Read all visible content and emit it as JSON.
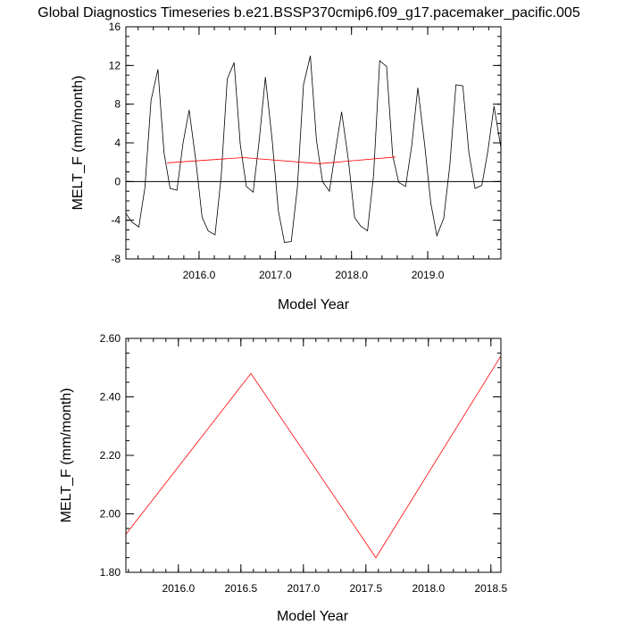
{
  "figure": {
    "title": "Global Diagnostics Timeseries b.e21.BSSP370cmip6.f09_g17.pacemaker_pacific.005"
  },
  "colors": {
    "monthly_series": "#000000",
    "annual_series": "#ff0000",
    "zero_line": "#000000"
  },
  "chart_data": [
    {
      "type": "line",
      "title": "Global Diagnostics Timeseries b.e21.BSSP370cmip6.f09_g17.pacemaker_pacific.005",
      "xlabel": "Model Year",
      "ylabel": "MELT_F (mm/month)",
      "xlim": [
        2015.04,
        2019.96
      ],
      "ylim": [
        -8,
        16
      ],
      "xticks": [
        2016.0,
        2017.0,
        2018.0,
        2019.0
      ],
      "xtick_labels": [
        "2016.0",
        "2017.0",
        "2018.0",
        "2019.0"
      ],
      "yticks": [
        -8,
        -4,
        0,
        4,
        8,
        12,
        16
      ],
      "ytick_labels": [
        "-8",
        "-4",
        "0",
        "4",
        "8",
        "12",
        "16"
      ],
      "zero_line": {
        "y": 0,
        "x": [
          2015.0,
          2020.0
        ]
      },
      "series": [
        {
          "x": [
            2015.04,
            2015.12,
            2015.21,
            2015.29,
            2015.37,
            2015.46,
            2015.54,
            2015.62,
            2015.71,
            2015.79,
            2015.87,
            2015.96,
            2016.04,
            2016.12,
            2016.21,
            2016.29,
            2016.37,
            2016.46,
            2016.54,
            2016.62,
            2016.71,
            2016.79,
            2016.87,
            2016.96,
            2017.04,
            2017.12,
            2017.21,
            2017.29,
            2017.37,
            2017.46,
            2017.54,
            2017.62,
            2017.71,
            2017.79,
            2017.87,
            2017.96,
            2018.04,
            2018.12,
            2018.21,
            2018.29,
            2018.37,
            2018.46,
            2018.54,
            2018.62,
            2018.71,
            2018.79,
            2018.87,
            2018.96,
            2019.04,
            2019.12,
            2019.21,
            2019.29,
            2019.37,
            2019.46,
            2019.54,
            2019.62,
            2019.71,
            2019.79,
            2019.87,
            2019.96
          ],
          "y": [
            -3.3,
            -4.2,
            -4.7,
            -0.6,
            8.4,
            11.6,
            3.0,
            -0.7,
            -0.9,
            4.0,
            7.4,
            2.0,
            -3.7,
            -5.1,
            -5.5,
            0.5,
            10.6,
            12.3,
            3.9,
            -0.5,
            -1.1,
            4.3,
            10.8,
            4.2,
            -3.0,
            -6.3,
            -6.2,
            -0.6,
            10.0,
            13.0,
            4.3,
            0.0,
            -1.0,
            3.2,
            7.2,
            2.2,
            -3.7,
            -4.6,
            -5.1,
            0.7,
            12.5,
            11.9,
            2.7,
            -0.1,
            -0.5,
            3.7,
            9.7,
            3.8,
            -2.2,
            -5.6,
            -3.8,
            1.7,
            10.0,
            9.9,
            3.0,
            -0.7,
            -0.4,
            3.2,
            7.8,
            3.5
          ]
        },
        {
          "x": [
            2015.58,
            2016.58,
            2017.58,
            2018.58
          ],
          "y": [
            1.93,
            2.48,
            1.85,
            2.54
          ]
        }
      ]
    },
    {
      "type": "line",
      "xlabel": "Model Year",
      "ylabel": "MELT_F (mm/month)",
      "xlim": [
        2015.58,
        2018.58
      ],
      "ylim": [
        1.8,
        2.6
      ],
      "xticks": [
        2016.0,
        2016.5,
        2017.0,
        2017.5,
        2018.0,
        2018.5
      ],
      "xtick_labels": [
        "2016.0",
        "2016.5",
        "2017.0",
        "2017.5",
        "2018.0",
        "2018.5"
      ],
      "yticks": [
        1.8,
        2.0,
        2.2,
        2.4,
        2.6
      ],
      "ytick_labels": [
        "1.80",
        "2.00",
        "2.20",
        "2.40",
        "2.60"
      ],
      "series": [
        {
          "x": [
            2015.58,
            2016.58,
            2017.58,
            2018.58
          ],
          "y": [
            1.93,
            2.48,
            1.85,
            2.54
          ]
        }
      ]
    }
  ]
}
